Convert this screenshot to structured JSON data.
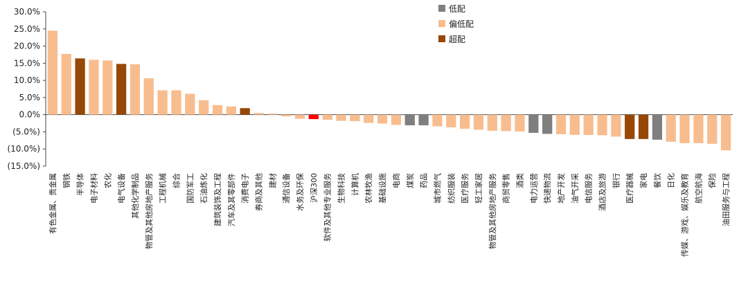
{
  "colors": {
    "低配": "#7f7f7f",
    "偏低配": "#f8bd8f",
    "超配": "#974706",
    "沪深300": "#ff0000"
  },
  "chart_data": {
    "type": "bar",
    "title": "",
    "xlabel": "",
    "ylabel": "",
    "ylim": [
      -15,
      30
    ],
    "yticks": [
      -15,
      -10,
      -5,
      0,
      5,
      10,
      15,
      20,
      25,
      30
    ],
    "ytick_labels": [
      "(15.0%)",
      "(10.0%)",
      "(5.0%)",
      "0.0%",
      "5.0%",
      "10.0%",
      "15.0%",
      "20.0%",
      "25.0%",
      "30.0%"
    ],
    "grid": false,
    "legend_position": "top-center",
    "legend": [
      "低配",
      "偏低配",
      "超配"
    ],
    "categories": [
      "有色金属、贵金属",
      "钢铁",
      "半导体",
      "电子材料",
      "农化",
      "电气设备",
      "其他化学制品",
      "物管及其他房地产服务",
      "工程机械",
      "综合",
      "国防军工",
      "石油炼化",
      "建筑装饰及工程",
      "汽车及其零部件",
      "消费电子",
      "券商及其他",
      "建材",
      "通信设备",
      "水务及环保",
      "沪深300",
      "软件及其他专业服务",
      "生物科技",
      "计算机",
      "农林牧渔",
      "基础设施",
      "电商",
      "煤炭",
      "药品",
      "城市燃气",
      "纺织服装",
      "医疗服务",
      "轻工家居",
      "物管及其他房地产服务",
      "商贸零售",
      "酒类",
      "电力运营",
      "快递物流",
      "地产开发",
      "油气开采",
      "电信服务",
      "酒店及旅游",
      "银行",
      "医疗器械",
      "家电",
      "餐饮",
      "日化",
      "传媒、游戏、娱乐及教育",
      "航空航海",
      "保险",
      "油田服务与工程"
    ],
    "values": [
      24.5,
      17.7,
      16.4,
      16.0,
      15.8,
      14.8,
      14.7,
      10.6,
      7.1,
      7.1,
      6.1,
      4.2,
      2.8,
      2.4,
      1.9,
      0.5,
      0.3,
      -0.5,
      -1.2,
      -1.3,
      -1.5,
      -1.8,
      -1.9,
      -2.4,
      -2.6,
      -3.0,
      -3.1,
      -3.1,
      -3.4,
      -3.7,
      -4.1,
      -4.4,
      -4.7,
      -4.8,
      -4.9,
      -5.3,
      -5.6,
      -5.7,
      -5.9,
      -5.9,
      -6.0,
      -6.4,
      -7.1,
      -7.1,
      -7.3,
      -7.9,
      -8.3,
      -8.3,
      -8.5,
      -10.4
    ],
    "groups": [
      "偏低配",
      "偏低配",
      "超配",
      "偏低配",
      "偏低配",
      "超配",
      "偏低配",
      "偏低配",
      "偏低配",
      "偏低配",
      "偏低配",
      "偏低配",
      "偏低配",
      "偏低配",
      "超配",
      "偏低配",
      "偏低配",
      "偏低配",
      "偏低配",
      "沪深300",
      "偏低配",
      "偏低配",
      "偏低配",
      "偏低配",
      "偏低配",
      "偏低配",
      "低配",
      "低配",
      "偏低配",
      "偏低配",
      "偏低配",
      "偏低配",
      "偏低配",
      "偏低配",
      "偏低配",
      "低配",
      "低配",
      "偏低配",
      "偏低配",
      "偏低配",
      "偏低配",
      "偏低配",
      "超配",
      "超配",
      "低配",
      "偏低配",
      "偏低配",
      "偏低配",
      "偏低配",
      "偏低配"
    ]
  }
}
